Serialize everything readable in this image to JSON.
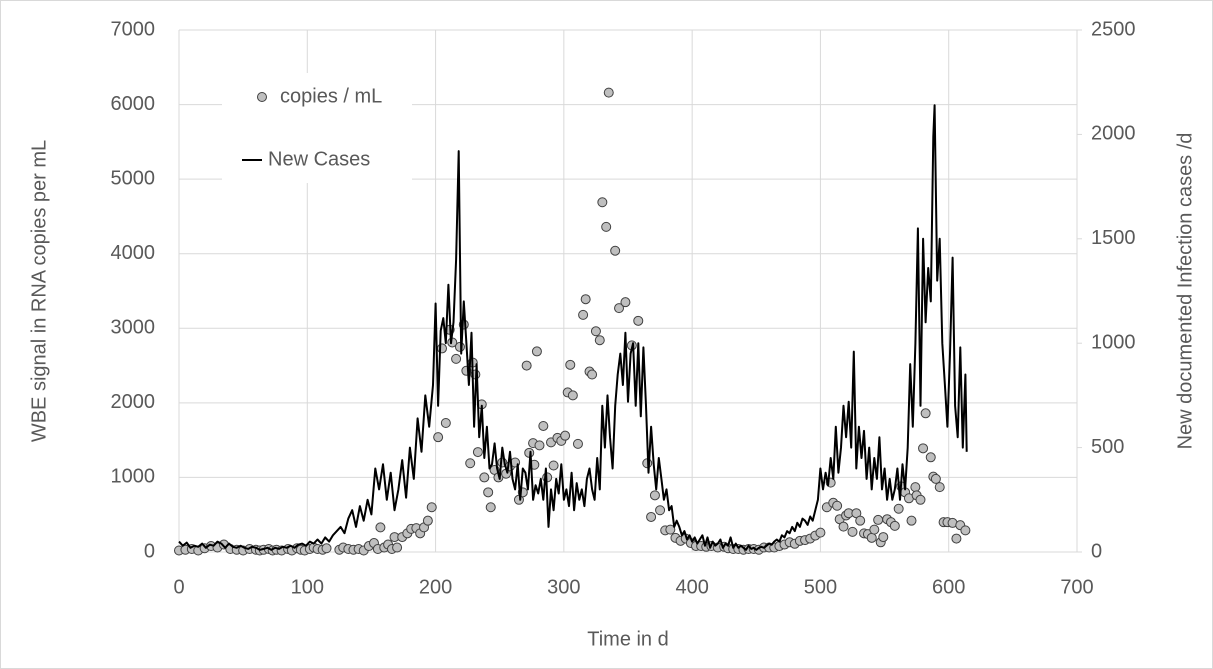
{
  "chart_data": {
    "type": "scatter",
    "x_label": "Time in d",
    "y_label": "WBE signal in RNA copies per mL",
    "y2_label": "New documented Infection cases /d",
    "xlim": [
      0,
      700
    ],
    "xticks": [
      0,
      100,
      200,
      300,
      400,
      500,
      600,
      700
    ],
    "ylim": [
      0,
      7000
    ],
    "yticks": [
      0,
      1000,
      2000,
      3000,
      4000,
      5000,
      6000,
      7000
    ],
    "y2lim": [
      0,
      2500
    ],
    "y2ticks": [
      0,
      500,
      1000,
      1500,
      2000,
      2500
    ],
    "grid": true,
    "legend": "upper left",
    "series": [
      {
        "name": "copies / mL",
        "type": "scatter",
        "color": "#bfbfbf",
        "x": [
          0,
          5,
          10,
          15,
          20,
          25,
          30,
          35,
          40,
          45,
          50,
          55,
          60,
          63,
          66,
          70,
          73,
          76,
          80,
          85,
          88,
          92,
          95,
          98,
          102,
          105,
          108,
          112,
          115,
          125,
          128,
          132,
          136,
          140,
          144,
          148,
          152,
          155,
          157,
          160,
          163,
          166,
          168,
          170,
          174,
          178,
          181,
          185,
          188,
          191,
          194,
          197,
          202,
          205,
          208,
          211,
          213,
          216,
          219,
          222,
          224,
          227,
          229,
          231,
          233,
          236,
          238,
          241,
          243,
          246,
          249,
          252,
          255,
          258,
          262,
          265,
          268,
          271,
          273,
          276,
          277,
          279,
          281,
          284,
          287,
          290,
          292,
          295,
          298,
          301,
          303,
          305,
          307,
          311,
          315,
          317,
          320,
          322,
          325,
          328,
          330,
          333,
          335,
          340,
          343,
          348,
          353,
          358,
          365,
          368,
          371,
          375,
          379,
          383,
          387,
          391,
          395,
          399,
          403,
          407,
          411,
          415,
          420,
          425,
          428,
          432,
          436,
          440,
          444,
          448,
          452,
          456,
          460,
          464,
          468,
          472,
          476,
          480,
          484,
          488,
          492,
          496,
          500,
          505,
          508,
          510,
          513,
          515,
          518,
          520,
          522,
          525,
          528,
          531,
          534,
          537,
          540,
          542,
          545,
          547,
          549,
          552,
          555,
          558,
          561,
          563,
          566,
          569,
          571,
          574,
          575,
          578,
          580,
          582,
          586,
          588,
          590,
          593,
          596,
          599,
          603,
          606,
          609,
          613
        ],
        "values": [
          20,
          30,
          40,
          20,
          50,
          80,
          60,
          100,
          40,
          30,
          20,
          40,
          30,
          20,
          30,
          40,
          20,
          30,
          20,
          40,
          20,
          50,
          30,
          20,
          40,
          60,
          40,
          30,
          50,
          30,
          60,
          40,
          30,
          40,
          20,
          80,
          120,
          40,
          330,
          60,
          100,
          40,
          200,
          60,
          200,
          250,
          310,
          320,
          250,
          330,
          420,
          600,
          1540,
          2730,
          1730,
          2980,
          2810,
          2590,
          2750,
          3050,
          2430,
          1190,
          2540,
          2380,
          1340,
          1980,
          1000,
          800,
          600,
          1100,
          1000,
          1200,
          1050,
          1150,
          1200,
          700,
          800,
          2500,
          1330,
          1460,
          1170,
          2690,
          1430,
          1690,
          1000,
          1470,
          1160,
          1530,
          1490,
          1560,
          2140,
          2510,
          2100,
          1450,
          3180,
          3390,
          2420,
          2380,
          2960,
          2840,
          4690,
          4360,
          6160,
          4040,
          3270,
          3350,
          2770,
          3100,
          1190,
          470,
          760,
          560,
          290,
          300,
          190,
          150,
          180,
          120,
          80,
          80,
          70,
          80,
          60,
          70,
          50,
          40,
          40,
          30,
          40,
          40,
          30,
          60,
          60,
          60,
          80,
          100,
          130,
          110,
          150,
          160,
          180,
          220,
          260,
          600,
          930,
          660,
          620,
          440,
          340,
          490,
          520,
          270,
          520,
          420,
          250,
          240,
          190,
          300,
          430,
          130,
          200,
          440,
          400,
          350,
          580,
          880,
          800,
          720,
          420,
          870,
          760,
          700,
          1390,
          1860,
          1270,
          1010,
          980,
          870,
          400,
          400,
          390,
          180,
          360,
          290
        ]
      },
      {
        "name": "New Cases",
        "type": "line",
        "axis": "y2",
        "color": "#000000",
        "x": [
          0,
          3,
          6,
          9,
          12,
          15,
          18,
          21,
          24,
          27,
          30,
          33,
          36,
          39,
          42,
          45,
          48,
          51,
          54,
          57,
          60,
          63,
          66,
          69,
          72,
          75,
          78,
          81,
          84,
          87,
          90,
          93,
          96,
          99,
          102,
          105,
          108,
          111,
          114,
          117,
          120,
          123,
          126,
          129,
          132,
          135,
          138,
          141,
          144,
          147,
          150,
          153,
          156,
          159,
          162,
          165,
          168,
          171,
          174,
          177,
          180,
          183,
          186,
          189,
          192,
          195,
          198,
          200,
          202,
          204,
          206,
          208,
          210,
          212,
          214,
          216,
          218,
          220,
          222,
          224,
          226,
          228,
          230,
          232,
          234,
          236,
          238,
          240,
          242,
          244,
          246,
          248,
          250,
          252,
          254,
          256,
          258,
          260,
          262,
          264,
          266,
          268,
          270,
          272,
          274,
          276,
          278,
          280,
          282,
          284,
          286,
          288,
          290,
          292,
          294,
          296,
          298,
          300,
          302,
          304,
          306,
          308,
          310,
          312,
          314,
          316,
          318,
          320,
          322,
          324,
          326,
          328,
          330,
          332,
          334,
          336,
          338,
          340,
          342,
          344,
          346,
          348,
          350,
          352,
          354,
          356,
          358,
          360,
          362,
          364,
          366,
          368,
          370,
          372,
          374,
          376,
          378,
          380,
          382,
          384,
          386,
          388,
          390,
          392,
          394,
          396,
          398,
          400,
          402,
          404,
          406,
          408,
          410,
          412,
          414,
          416,
          418,
          420,
          422,
          424,
          426,
          428,
          430,
          432,
          434,
          436,
          438,
          440,
          442,
          444,
          446,
          448,
          450,
          452,
          454,
          456,
          458,
          460,
          462,
          464,
          466,
          468,
          470,
          472,
          474,
          476,
          478,
          480,
          482,
          484,
          486,
          488,
          490,
          492,
          494,
          496,
          498,
          500,
          502,
          504,
          506,
          508,
          510,
          512,
          514,
          516,
          518,
          520,
          522,
          524,
          526,
          528,
          530,
          532,
          534,
          536,
          538,
          540,
          542,
          544,
          546,
          548,
          550,
          552,
          554,
          556,
          558,
          560,
          562,
          564,
          566,
          568,
          570,
          572,
          574,
          576,
          578,
          580,
          582,
          584,
          586,
          588,
          589,
          591,
          593,
          595,
          597,
          599,
          601,
          603,
          605,
          607,
          609,
          611,
          613,
          614
        ],
        "values": [
          50,
          30,
          45,
          20,
          30,
          25,
          40,
          20,
          35,
          30,
          50,
          40,
          20,
          40,
          25,
          20,
          30,
          20,
          15,
          25,
          20,
          10,
          15,
          20,
          10,
          20,
          15,
          25,
          20,
          30,
          20,
          35,
          40,
          30,
          50,
          40,
          60,
          40,
          70,
          50,
          80,
          100,
          120,
          90,
          160,
          200,
          120,
          220,
          150,
          250,
          180,
          400,
          300,
          420,
          250,
          380,
          200,
          300,
          440,
          260,
          500,
          350,
          640,
          480,
          750,
          600,
          800,
          1190,
          700,
          1060,
          1120,
          1000,
          1280,
          1000,
          1100,
          1400,
          1920,
          950,
          1200,
          1000,
          800,
          1050,
          600,
          900,
          550,
          700,
          450,
          600,
          400,
          420,
          520,
          400,
          350,
          500,
          420,
          380,
          480,
          350,
          300,
          420,
          250,
          400,
          380,
          300,
          480,
          250,
          320,
          280,
          350,
          250,
          400,
          120,
          300,
          200,
          350,
          280,
          420,
          250,
          300,
          220,
          380,
          200,
          330,
          250,
          300,
          220,
          350,
          400,
          300,
          250,
          450,
          300,
          700,
          500,
          750,
          550,
          400,
          700,
          850,
          950,
          800,
          1050,
          720,
          950,
          1000,
          700,
          1000,
          650,
          980,
          700,
          380,
          600,
          420,
          300,
          450,
          350,
          250,
          300,
          200,
          220,
          120,
          150,
          120,
          80,
          100,
          60,
          80,
          50,
          70,
          40,
          60,
          80,
          30,
          70,
          20,
          50,
          30,
          40,
          60,
          20,
          40,
          30,
          70,
          20,
          40,
          20,
          30,
          20,
          10,
          30,
          15,
          20,
          10,
          20,
          25,
          20,
          30,
          40,
          35,
          50,
          60,
          50,
          80,
          70,
          100,
          90,
          120,
          100,
          140,
          120,
          160,
          150,
          130,
          170,
          150,
          200,
          250,
          400,
          300,
          380,
          320,
          450,
          350,
          600,
          380,
          500,
          700,
          550,
          720,
          500,
          960,
          400,
          600,
          450,
          580,
          350,
          500,
          300,
          450,
          350,
          550,
          300,
          400,
          250,
          350,
          250,
          300,
          400,
          250,
          420,
          300,
          500,
          900,
          600,
          1000,
          1550,
          700,
          1500,
          1100,
          1360,
          1200,
          1990,
          2140,
          1300,
          1500,
          1000,
          800,
          600,
          950,
          1410,
          700,
          550,
          980,
          500,
          850,
          480
        ]
      }
    ]
  }
}
